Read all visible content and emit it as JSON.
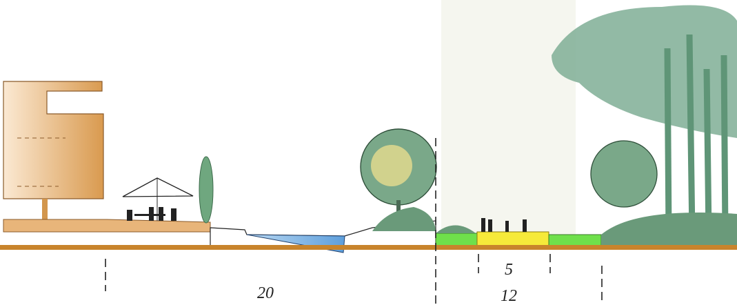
{
  "dimensions": [
    {
      "label": "20"
    },
    {
      "label": "5"
    },
    {
      "label": "12"
    }
  ]
}
